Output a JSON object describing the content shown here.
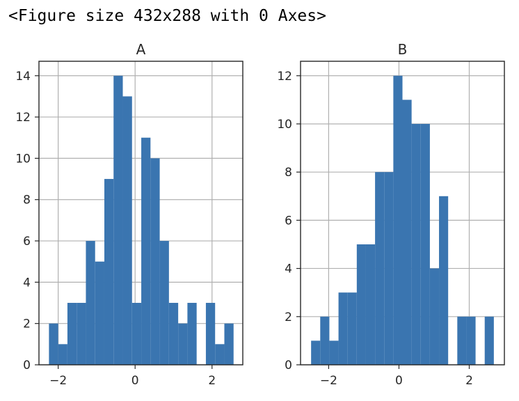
{
  "output_text": "<Figure size 432x288 with 0 Axes>",
  "colors": {
    "bar": "#3a75b0",
    "grid": "#b0b0b0",
    "axes": "#262626"
  },
  "chart_data": [
    {
      "type": "bar",
      "title": "A",
      "grid": true,
      "bin_edges": [
        -2.24,
        -2.0,
        -1.76,
        -1.52,
        -1.28,
        -1.04,
        -0.8,
        -0.56,
        -0.32,
        -0.08,
        0.16,
        0.4,
        0.64,
        0.88,
        1.12,
        1.36,
        1.6,
        1.84,
        2.08,
        2.32,
        2.56
      ],
      "values": [
        2,
        1,
        3,
        3,
        6,
        5,
        9,
        14,
        13,
        3,
        11,
        10,
        6,
        3,
        2,
        3,
        0,
        3,
        1,
        2
      ],
      "xlim": [
        -2.5,
        2.8
      ],
      "ylim": [
        0,
        14.7
      ],
      "xticks": [
        -2,
        0,
        2
      ],
      "xtick_labels": [
        "−2",
        "0",
        "2"
      ],
      "yticks": [
        0,
        2,
        4,
        6,
        8,
        10,
        12,
        14
      ],
      "ytick_labels": [
        "0",
        "2",
        "4",
        "6",
        "8",
        "10",
        "12",
        "14"
      ]
    },
    {
      "type": "bar",
      "title": "B",
      "grid": true,
      "bin_edges": [
        -2.5,
        -2.24,
        -1.98,
        -1.72,
        -1.46,
        -1.2,
        -0.94,
        -0.68,
        -0.42,
        -0.16,
        0.1,
        0.36,
        0.62,
        0.88,
        1.14,
        1.4,
        1.66,
        1.92,
        2.18,
        2.44,
        2.7
      ],
      "values": [
        1,
        2,
        1,
        3,
        3,
        5,
        5,
        8,
        8,
        12,
        11,
        10,
        10,
        4,
        7,
        0,
        2,
        2,
        0,
        2
      ],
      "xlim": [
        -2.8,
        3.0
      ],
      "ylim": [
        0,
        12.6
      ],
      "xticks": [
        -2,
        0,
        2
      ],
      "xtick_labels": [
        "−2",
        "0",
        "2"
      ],
      "yticks": [
        0,
        2,
        4,
        6,
        8,
        10,
        12
      ],
      "ytick_labels": [
        "0",
        "2",
        "4",
        "6",
        "8",
        "10",
        "12"
      ]
    }
  ]
}
